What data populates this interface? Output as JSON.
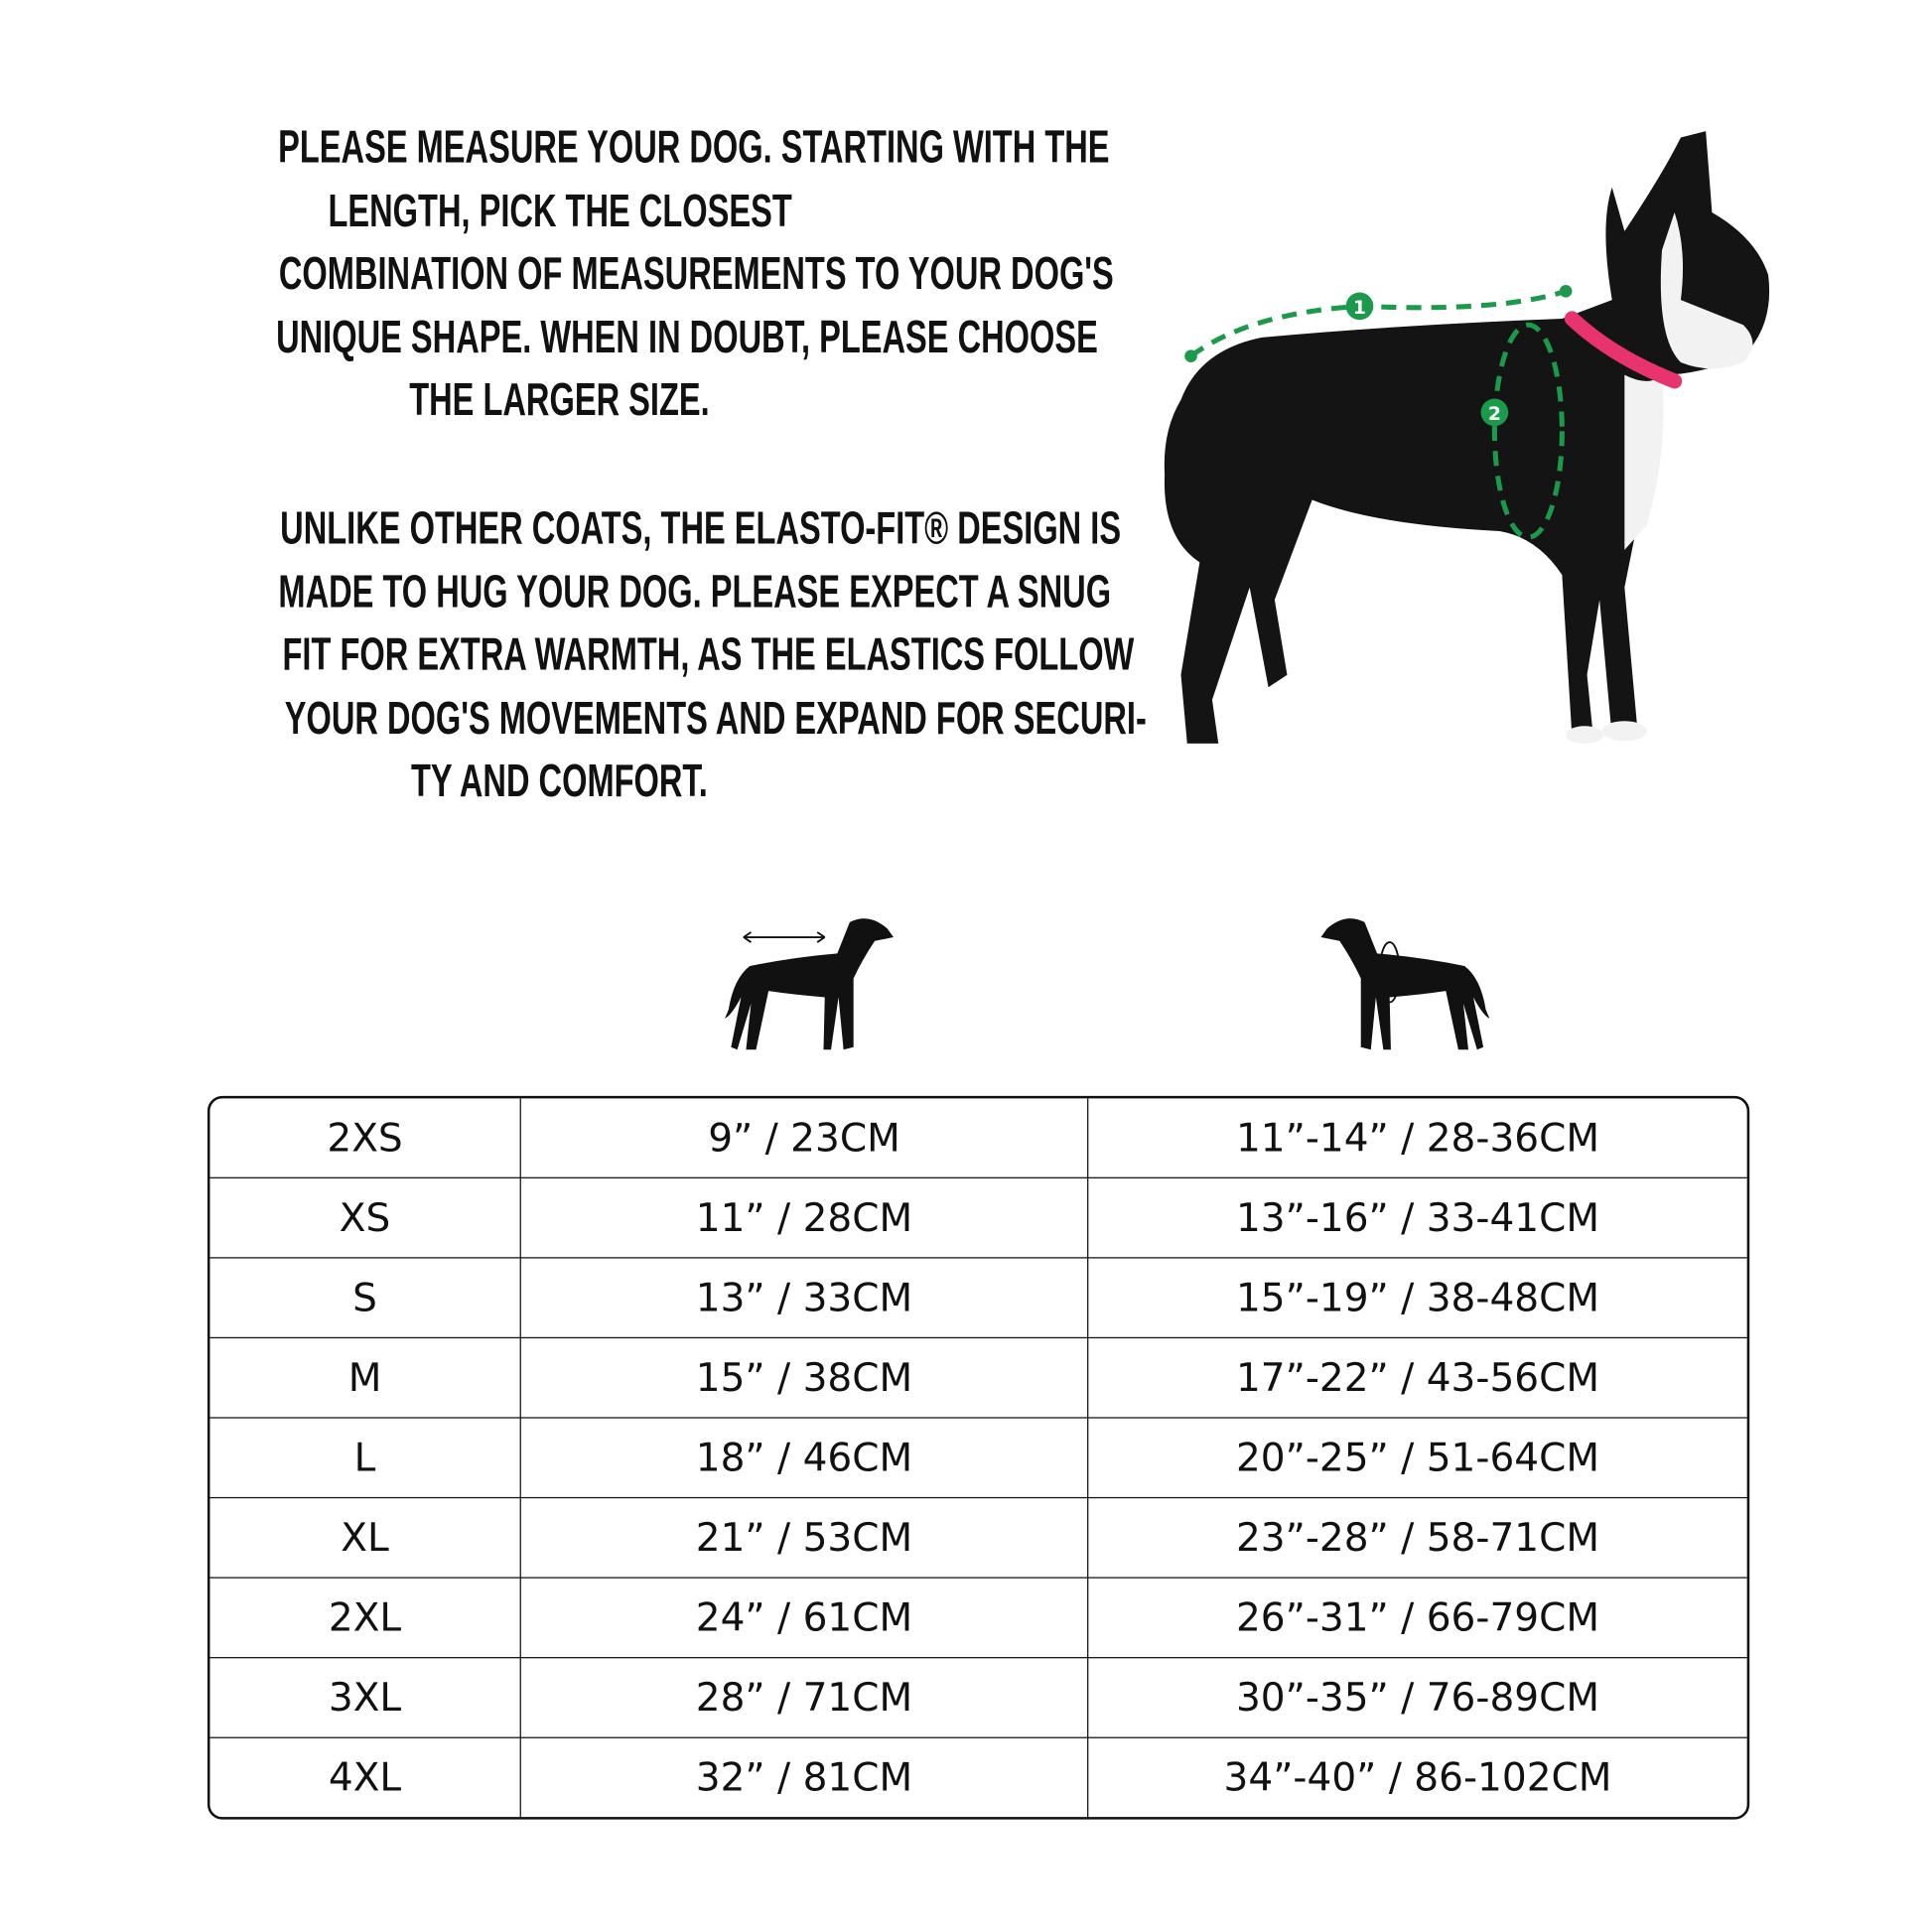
{
  "intro": {
    "paragraph1": [
      "PLEASE MEASURE YOUR DOG. STARTING WITH THE",
      "LENGTH, PICK THE CLOSEST",
      "COMBINATION OF MEASUREMENTS TO YOUR DOG'S",
      "UNIQUE SHAPE. WHEN IN DOUBT, PLEASE CHOOSE",
      "THE LARGER SIZE."
    ],
    "paragraph2": [
      "UNLIKE OTHER COATS, THE ELASTO-FIT® DESIGN IS",
      "MADE TO HUG YOUR DOG. PLEASE EXPECT A SNUG",
      "FIT FOR EXTRA WARMTH, AS THE ELASTICS FOLLOW",
      "YOUR DOG'S MOVEMENTS AND EXPAND FOR SECURI-",
      "TY AND COMFORT."
    ]
  },
  "photo": {
    "markers": [
      "1",
      "2"
    ],
    "marker_color": "#1a9a4a",
    "collar_color": "#e8336e"
  },
  "icons": {
    "length": "dog-length-icon",
    "chest": "dog-chest-girth-icon"
  },
  "size_table": [
    [
      "2XS",
      "9” / 23CM",
      "11”-14” / 28-36CM"
    ],
    [
      "XS",
      "11” / 28CM",
      "13”-16” / 33-41CM"
    ],
    [
      "S",
      "13” / 33CM",
      "15”-19” / 38-48CM"
    ],
    [
      "M",
      "15” / 38CM",
      "17”-22” / 43-56CM"
    ],
    [
      "L",
      "18” / 46CM",
      "20”-25” / 51-64CM"
    ],
    [
      "XL",
      "21” / 53CM",
      "23”-28” / 58-71CM"
    ],
    [
      "2XL",
      "24” / 61CM",
      "26”-31” / 66-79CM"
    ],
    [
      "3XL",
      "28” / 71CM",
      "30”-35” / 76-89CM"
    ],
    [
      "4XL",
      "32” / 81CM",
      "34”-40” / 86-102CM"
    ]
  ]
}
